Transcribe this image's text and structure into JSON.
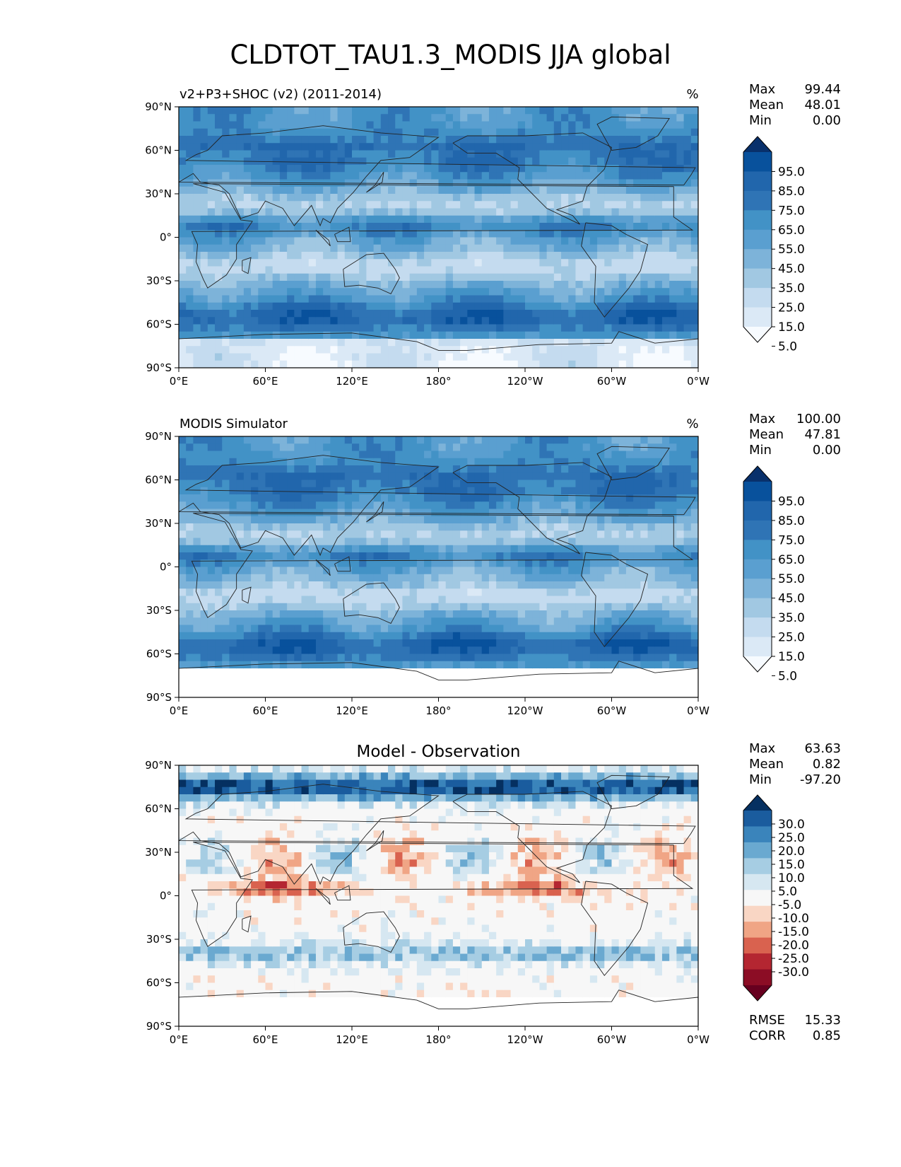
{
  "title": "CLDTOT_TAU1.3_MODIS JJA global",
  "x_ticks": [
    "0°E",
    "60°E",
    "120°E",
    "180°",
    "120°W",
    "60°W",
    "0°W"
  ],
  "y_ticks": [
    "90°N",
    "60°N",
    "30°N",
    "0°",
    "30°S",
    "60°S",
    "90°S"
  ],
  "panels": [
    {
      "left_title": "v2+P3+SHOC (v2) (2011-2014)",
      "center_title": "",
      "units": "%",
      "stats": [
        [
          "Max",
          "99.44"
        ],
        [
          "Mean",
          "48.01"
        ],
        [
          "Min",
          "0.00"
        ]
      ],
      "colorbar_labels": [
        "95.0",
        "85.0",
        "75.0",
        "65.0",
        "55.0",
        "45.0",
        "35.0",
        "25.0",
        "15.0",
        "5.0"
      ],
      "colorbar_colors": [
        "#08306b",
        "#08519c",
        "#2166ac",
        "#2f74b5",
        "#4292c6",
        "#5a9fd0",
        "#7db3d9",
        "#a1c8e2",
        "#c4dbef",
        "#dbe9f6",
        "#f7fbff"
      ]
    },
    {
      "left_title": "MODIS Simulator",
      "center_title": "",
      "units": "%",
      "stats": [
        [
          "Max",
          "100.00"
        ],
        [
          "Mean",
          "47.81"
        ],
        [
          "Min",
          "0.00"
        ]
      ],
      "colorbar_labels": [
        "95.0",
        "85.0",
        "75.0",
        "65.0",
        "55.0",
        "45.0",
        "35.0",
        "25.0",
        "15.0",
        "5.0"
      ],
      "colorbar_colors": [
        "#08306b",
        "#08519c",
        "#2166ac",
        "#2f74b5",
        "#4292c6",
        "#5a9fd0",
        "#7db3d9",
        "#a1c8e2",
        "#c4dbef",
        "#dbe9f6",
        "#f7fbff"
      ]
    },
    {
      "left_title": "",
      "center_title": "Model - Observation",
      "units": "",
      "stats": [
        [
          "Max",
          "63.63"
        ],
        [
          "Mean",
          "0.82"
        ],
        [
          "Min",
          "-97.20"
        ]
      ],
      "extra_stats": [
        [
          "RMSE",
          "15.33"
        ],
        [
          "CORR",
          "0.85"
        ]
      ],
      "colorbar_labels": [
        "30.0",
        "25.0",
        "20.0",
        "15.0",
        "10.0",
        "5.0",
        "-5.0",
        "-10.0",
        "-15.0",
        "-20.0",
        "-25.0",
        "-30.0"
      ],
      "colorbar_colors": [
        "#053061",
        "#1a5c9e",
        "#3a84bb",
        "#6aa9d0",
        "#a6cde3",
        "#d6e7f1",
        "#f7f7f7",
        "#f9d6c4",
        "#f0a585",
        "#d9624f",
        "#b42631",
        "#8c0d25",
        "#67001f"
      ]
    }
  ],
  "chart_data": {
    "type": "heatmap",
    "title": "CLDTOT_TAU1.3_MODIS JJA global",
    "projection": "PlateCarree global map",
    "xlim": [
      0,
      360
    ],
    "ylim": [
      -90,
      90
    ],
    "panels": [
      {
        "name": "v2+P3+SHOC (v2) (2011-2014)",
        "units": "%",
        "max": 99.44,
        "mean": 48.01,
        "min": 0.0,
        "levels": [
          5,
          15,
          25,
          35,
          45,
          55,
          65,
          75,
          85,
          95
        ]
      },
      {
        "name": "MODIS Simulator",
        "units": "%",
        "max": 100.0,
        "mean": 47.81,
        "min": 0.0,
        "levels": [
          5,
          15,
          25,
          35,
          45,
          55,
          65,
          75,
          85,
          95
        ]
      },
      {
        "name": "Model - Observation",
        "max": 63.63,
        "mean": 0.82,
        "min": -97.2,
        "rmse": 15.33,
        "corr": 0.85,
        "levels": [
          -30,
          -25,
          -20,
          -15,
          -10,
          -5,
          5,
          10,
          15,
          20,
          25,
          30
        ]
      }
    ]
  }
}
